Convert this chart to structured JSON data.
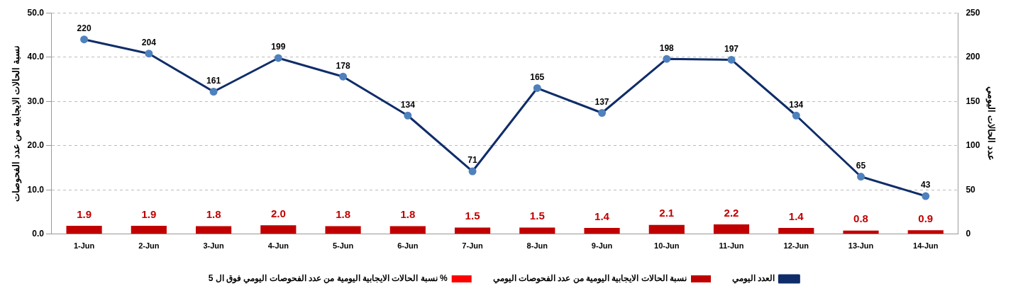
{
  "chart_data": {
    "type": "bar",
    "categories": [
      "1-Jun",
      "2-Jun",
      "3-Jun",
      "4-Jun",
      "5-Jun",
      "6-Jun",
      "7-Jun",
      "8-Jun",
      "9-Jun",
      "10-Jun",
      "11-Jun",
      "12-Jun",
      "13-Jun",
      "14-Jun"
    ],
    "ylabel": "نسبة الحالات الايجابية من عدد الفحوصات",
    "y2label": "عدد الحالات اليومي",
    "ylim": [
      0,
      50
    ],
    "yticks": [
      {
        "value": 0,
        "label": "0.0"
      },
      {
        "value": 10,
        "label": "10.0"
      },
      {
        "value": 20,
        "label": "20.0"
      },
      {
        "value": 30,
        "label": "30.0"
      },
      {
        "value": 40,
        "label": "40.0"
      },
      {
        "value": 50,
        "label": "50.0"
      }
    ],
    "y2lim": [
      0,
      250
    ],
    "y2ticks": [
      0,
      50,
      100,
      150,
      200,
      250
    ],
    "grid": "y",
    "legend": "bottom",
    "series": [
      {
        "name": "العدد اليومي",
        "type": "line",
        "axis": "y2",
        "color": "#0f2d69",
        "marker": "circle",
        "values": [
          220,
          204,
          161,
          199,
          178,
          134,
          71,
          165,
          137,
          198,
          197,
          134,
          65,
          43
        ],
        "value_labels": [
          "220",
          "204",
          "161",
          "199",
          "178",
          "134",
          "71",
          "165",
          "137",
          "198",
          "197",
          "134",
          "65",
          "43"
        ]
      },
      {
        "name": "نسبة الحالات الايجابية اليومية من عدد الفحوصات اليومي",
        "color": "#c00000",
        "values": [
          1.9,
          1.9,
          1.8,
          2.0,
          1.8,
          1.8,
          1.5,
          1.5,
          1.4,
          2.1,
          2.2,
          1.4,
          0.8,
          0.9
        ],
        "value_labels": [
          "1.9",
          "1.9",
          "1.8",
          "2.0",
          "1.8",
          "1.8",
          "1.5",
          "1.5",
          "1.4",
          "2.1",
          "2.2",
          "1.4",
          "0.8",
          "0.9"
        ]
      },
      {
        "name": "نسبة الحالات الايجابية اليومية من عدد الفحوصات اليومي فوق ال 5 %",
        "color": "#ff0000",
        "values": [
          null,
          null,
          null,
          null,
          null,
          null,
          null,
          null,
          null,
          null,
          null,
          null,
          null,
          null
        ]
      }
    ]
  }
}
